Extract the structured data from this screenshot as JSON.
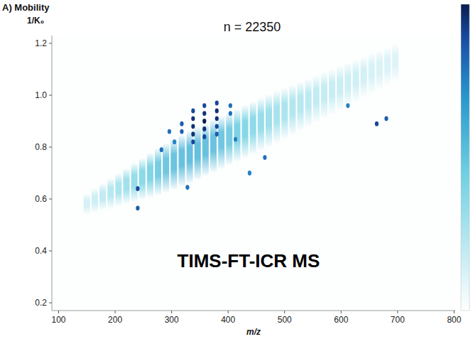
{
  "chart_data": {
    "type": "scatter",
    "title": "A) Mobility",
    "y_label": "1/K₀",
    "x_label": "m/z",
    "annotations": [
      "n = 22350",
      "TIMS-FT-ICR MS"
    ],
    "xlim": [
      88,
      802
    ],
    "xticks": [
      100,
      200,
      300,
      400,
      500,
      600,
      700,
      800
    ],
    "ylim": [
      0.17,
      1.23
    ],
    "yticks": [
      0.2,
      0.4,
      0.6,
      0.8,
      {
        "value": 1,
        "label": "1.0"
      },
      1.2
    ],
    "zlim": [
      0,
      1
    ],
    "grid": false,
    "stripes": {
      "x": [
        150,
        164,
        178,
        192,
        206,
        220,
        234,
        248,
        262,
        276,
        290,
        304,
        318,
        332,
        346,
        360,
        374,
        388,
        402,
        416,
        430,
        444,
        458,
        472,
        486,
        500,
        514,
        528,
        542,
        556,
        570,
        584,
        598,
        612,
        626,
        640,
        654,
        668,
        682,
        696
      ],
      "y_low": [
        0.54,
        0.548,
        0.557,
        0.565,
        0.574,
        0.582,
        0.59,
        0.599,
        0.607,
        0.616,
        0.626,
        0.637,
        0.649,
        0.662,
        0.676,
        0.69,
        0.704,
        0.718,
        0.732,
        0.746,
        0.76,
        0.774,
        0.788,
        0.802,
        0.817,
        0.833,
        0.849,
        0.865,
        0.881,
        0.897,
        0.912,
        0.928,
        0.944,
        0.96,
        0.976,
        0.992,
        1.008,
        1.024,
        1.04,
        1.056
      ],
      "y_high": [
        0.62,
        0.64,
        0.659,
        0.679,
        0.698,
        0.718,
        0.738,
        0.757,
        0.777,
        0.796,
        0.814,
        0.831,
        0.847,
        0.862,
        0.876,
        0.89,
        0.904,
        0.918,
        0.932,
        0.946,
        0.96,
        0.974,
        0.988,
        1.002,
        1.015,
        1.027,
        1.039,
        1.051,
        1.063,
        1.075,
        1.088,
        1.1,
        1.112,
        1.124,
        1.136,
        1.148,
        1.16,
        1.172,
        1.184,
        1.196
      ],
      "intensity": [
        0.15,
        0.18,
        0.22,
        0.26,
        0.3,
        0.34,
        0.38,
        0.42,
        0.46,
        0.5,
        0.53,
        0.55,
        0.56,
        0.57,
        0.57,
        0.56,
        0.55,
        0.53,
        0.5,
        0.47,
        0.44,
        0.41,
        0.38,
        0.35,
        0.32,
        0.3,
        0.28,
        0.26,
        0.24,
        0.22,
        0.21,
        0.2,
        0.19,
        0.18,
        0.17,
        0.16,
        0.15,
        0.14,
        0.13,
        0.12
      ]
    },
    "points": {
      "x": [
        240,
        240,
        282,
        296,
        305,
        318,
        318,
        328,
        338,
        338,
        338,
        338,
        338,
        358,
        358,
        358,
        358,
        358,
        380,
        380,
        380,
        380,
        380,
        404,
        404,
        413,
        438,
        465,
        612,
        663,
        680
      ],
      "y": [
        0.64,
        0.565,
        0.79,
        0.86,
        0.82,
        0.86,
        0.89,
        0.645,
        0.82,
        0.85,
        0.88,
        0.91,
        0.94,
        0.84,
        0.87,
        0.9,
        0.93,
        0.96,
        0.85,
        0.88,
        0.91,
        0.94,
        0.97,
        0.93,
        0.96,
        0.83,
        0.7,
        0.76,
        0.96,
        0.89,
        0.91
      ],
      "intensity": [
        0.9,
        0.85,
        0.8,
        0.8,
        0.75,
        0.85,
        0.85,
        0.8,
        0.9,
        0.95,
        0.95,
        0.95,
        0.9,
        0.9,
        0.95,
        1,
        0.95,
        0.9,
        0.85,
        0.9,
        0.95,
        0.95,
        0.9,
        0.8,
        0.8,
        0.75,
        0.75,
        0.8,
        0.75,
        0.9,
        0.85
      ]
    }
  }
}
